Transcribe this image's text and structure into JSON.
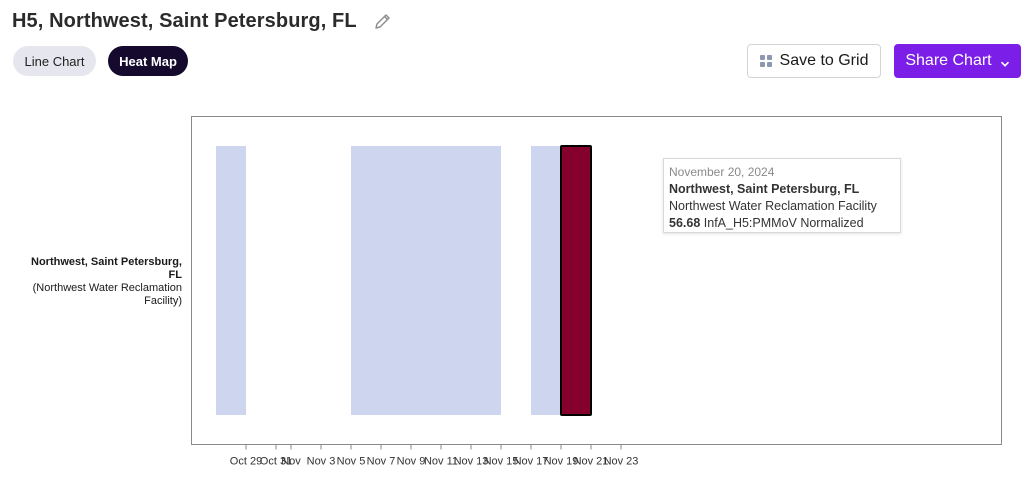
{
  "header": {
    "title": "H5, Northwest, Saint Petersburg, FL",
    "edit_icon": "pencil-icon"
  },
  "view_toggle": {
    "line_label": "Line Chart",
    "heat_label": "Heat Map",
    "active": "Heat Map"
  },
  "actions": {
    "save_label": "Save to Grid",
    "save_icon": "grid-icon",
    "share_label": "Share Chart",
    "share_icon": "chevron-down-icon"
  },
  "row_label": {
    "name": "Northwest, Saint Petersburg, FL",
    "facility": "(Northwest Water Reclamation Facility)"
  },
  "tooltip": {
    "date": "November 20, 2024",
    "location": "Northwest, Saint Petersburg, FL",
    "facility": "Northwest Water Reclamation Facility",
    "value": "56.68",
    "metric": "InfA_H5:PMMoV Normalized"
  },
  "chart_data": {
    "type": "heatmap",
    "rows": [
      "Northwest, Saint Petersburg, FL (Northwest Water Reclamation Facility)"
    ],
    "x_range": [
      "2024-10-27",
      "2024-11-23"
    ],
    "x_ticks": [
      {
        "date": "2024-10-29",
        "label": "Oct 29"
      },
      {
        "date": "2024-10-31",
        "label": "Oct 31"
      },
      {
        "date": "2024-11-01",
        "label": "Nov"
      },
      {
        "date": "2024-11-03",
        "label": "Nov 3"
      },
      {
        "date": "2024-11-05",
        "label": "Nov 5"
      },
      {
        "date": "2024-11-07",
        "label": "Nov 7"
      },
      {
        "date": "2024-11-09",
        "label": "Nov 9"
      },
      {
        "date": "2024-11-11",
        "label": "Nov 11"
      },
      {
        "date": "2024-11-13",
        "label": "Nov 13"
      },
      {
        "date": "2024-11-15",
        "label": "Nov 15"
      },
      {
        "date": "2024-11-17",
        "label": "Nov 17"
      },
      {
        "date": "2024-11-19",
        "label": "Nov 19"
      },
      {
        "date": "2024-11-21",
        "label": "Nov 21"
      },
      {
        "date": "2024-11-23",
        "label": "Nov 23"
      }
    ],
    "cells": [
      {
        "date": "2024-10-28",
        "color": "#cdd6ee"
      },
      {
        "date": "2024-11-06",
        "color": "#cdd6ee"
      },
      {
        "date": "2024-11-08",
        "color": "#cdd6ee"
      },
      {
        "date": "2024-11-10",
        "color": "#cdd6ee"
      },
      {
        "date": "2024-11-12",
        "color": "#cdd6ee"
      },
      {
        "date": "2024-11-14",
        "color": "#cdd6ee"
      },
      {
        "date": "2024-11-18",
        "color": "#cdd6ee"
      },
      {
        "date": "2024-11-20",
        "color": "#85002c",
        "value": 56.68,
        "highlighted": true
      }
    ],
    "grid": false,
    "legend": "none"
  },
  "colors": {
    "accent": "#7b1ee8",
    "toggle_active": "#150a2e",
    "cell_low": "#cdd6ee",
    "cell_high": "#85002c"
  }
}
